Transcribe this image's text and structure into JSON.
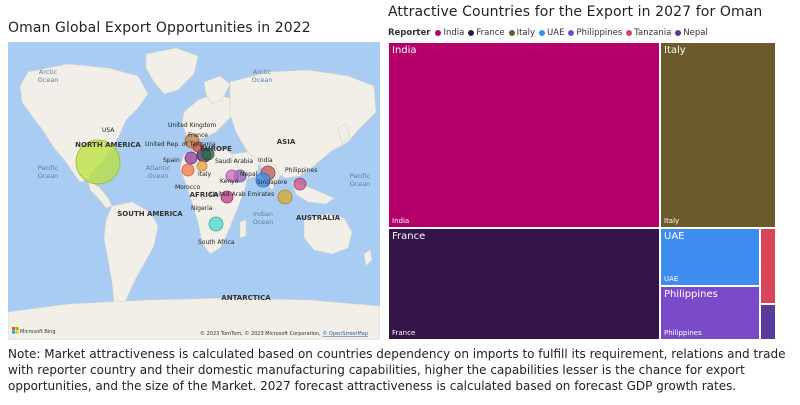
{
  "map": {
    "title": "Oman Global Export Opportunities in 2022",
    "ocean_labels": [
      {
        "text": "Arctic",
        "text2": "Ocean"
      },
      {
        "text": "Arctic",
        "text2": "Ocean"
      },
      {
        "text": "Pacific",
        "text2": "Ocean"
      },
      {
        "text": "Atlantic",
        "text2": "Ocean"
      },
      {
        "text": "Indian",
        "text2": "Ocean"
      },
      {
        "text": "Pacific",
        "text2": "Ocean"
      }
    ],
    "region_labels": [
      "NORTH AMERICA",
      "SOUTH AMERICA",
      "EUROPE",
      "ASIA",
      "AFRICA",
      "AUSTRALIA",
      "ANTARCTICA"
    ],
    "country_labels": [
      "USA",
      "United Kingdom",
      "France",
      "United Rep. of Tanzania",
      "Spain",
      "Saudi Arabia",
      "India",
      "Italy",
      "Nepal",
      "Philippines",
      "Kenya",
      "Morocco",
      "United Arab Emirates",
      "Singapore",
      "Nigeria",
      "South Africa"
    ],
    "bubbles": [
      {
        "country": "USA",
        "color": "#b9e03a"
      },
      {
        "country": "United Kingdom",
        "color": "#c7873e"
      },
      {
        "country": "France",
        "color": "#3d2e63"
      },
      {
        "country": "United Rep. of Tanzania",
        "color": "#d2524b"
      },
      {
        "country": "Spain",
        "color": "#8d3a99"
      },
      {
        "country": "Saudi Arabia",
        "color": "#2a6a4b"
      },
      {
        "country": "Italy",
        "color": "#e8a43c"
      },
      {
        "country": "Morocco",
        "color": "#f0784a"
      },
      {
        "country": "India",
        "color": "#b85a5a"
      },
      {
        "country": "Nepal",
        "color": "#8e5fc1"
      },
      {
        "country": "Kenya",
        "color": "#c86ac0"
      },
      {
        "country": "United Arab Emirates",
        "color": "#3d8ce8"
      },
      {
        "country": "Philippines",
        "color": "#c84e88"
      },
      {
        "country": "Singapore",
        "color": "#d8a82a"
      },
      {
        "country": "Nigeria",
        "color": "#c03a8a"
      },
      {
        "country": "South Africa",
        "color": "#44d8cc"
      }
    ],
    "attribution": "© 2023 TomTom, © 2023 Microsoft Corporation,",
    "attribution_link": "© OpenStreetMap",
    "logo": "Microsoft Bing"
  },
  "treemap": {
    "title": "Attractive Countries for the Export in 2027 for Oman",
    "legend_title": "Reporter",
    "legend": [
      {
        "name": "India",
        "color": "#b5006b"
      },
      {
        "name": "France",
        "color": "#34124a"
      },
      {
        "name": "Italy",
        "color": "#6b5a2c"
      },
      {
        "name": "UAE",
        "color": "#3d8cf0"
      },
      {
        "name": "Philippines",
        "color": "#7b4ac9"
      },
      {
        "name": "Tanzania",
        "color": "#d9465a"
      },
      {
        "name": "Nepal",
        "color": "#5a3a9a"
      }
    ],
    "tiles": [
      {
        "name": "India",
        "label": "India",
        "sub": "India",
        "color": "#b5006b"
      },
      {
        "name": "Italy",
        "label": "Italy",
        "sub": "Italy",
        "color": "#6b5a2c"
      },
      {
        "name": "France",
        "label": "France",
        "sub": "France",
        "color": "#34124a"
      },
      {
        "name": "UAE",
        "label": "UAE",
        "sub": "UAE",
        "color": "#3d8cf0"
      },
      {
        "name": "Philippines",
        "label": "Philippines",
        "sub": "Philippines",
        "color": "#7b4ac9"
      },
      {
        "name": "Tanzania",
        "label": "",
        "sub": "",
        "color": "#d9465a"
      },
      {
        "name": "Nepal",
        "label": "",
        "sub": "",
        "color": "#5a3a9a"
      }
    ]
  },
  "note": "Note: Market attractiveness is calculated based on countries dependency on imports to fulfill its requirement, relations and trade with reporter country and their domestic manufacturing capabilities, higher the capabilities lesser is the chance for export opportunities, and the size of the Market. 2027 forecast attractiveness is calculated based on forecast GDP growth rates."
}
